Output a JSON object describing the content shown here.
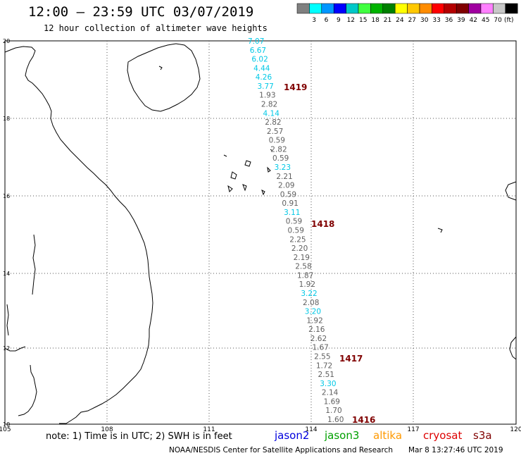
{
  "header": {
    "title": "12:00 – 23:59 UTC 03/07/2019",
    "subtitle": "12 hour collection of altimeter wave heights"
  },
  "legend": {
    "unit": "(ft)",
    "colors": [
      "#808080",
      "#00ffff",
      "#0096ff",
      "#0000ff",
      "#00c8c8",
      "#40ff40",
      "#00b400",
      "#008000",
      "#ffff00",
      "#ffc800",
      "#ff8c00",
      "#ff0000",
      "#b40000",
      "#800000",
      "#a000a0",
      "#ff80ff",
      "#c8c8c8",
      "#000000"
    ],
    "labels": [
      "3",
      "6",
      "9",
      "12",
      "15",
      "18",
      "21",
      "24",
      "27",
      "30",
      "33",
      "36",
      "39",
      "42",
      "45",
      "70"
    ]
  },
  "axes": {
    "lon_labels": [
      "105",
      "108",
      "111",
      "114",
      "117",
      "120"
    ],
    "lat_labels": [
      "20",
      "18",
      "16",
      "14",
      "12",
      "10"
    ]
  },
  "track": {
    "cyan": "#00c8e6",
    "gray": "#606060",
    "points": [
      {
        "v": "7.07",
        "c": "cyan"
      },
      {
        "v": "6.67",
        "c": "cyan"
      },
      {
        "v": "6.02",
        "c": "cyan"
      },
      {
        "v": "4.44",
        "c": "cyan"
      },
      {
        "v": "4.26",
        "c": "cyan"
      },
      {
        "v": "3.77",
        "c": "cyan"
      },
      {
        "v": "1.93",
        "c": "gray"
      },
      {
        "v": "2.82",
        "c": "gray"
      },
      {
        "v": "4.14",
        "c": "cyan"
      },
      {
        "v": "2.82",
        "c": "gray"
      },
      {
        "v": "2.57",
        "c": "gray"
      },
      {
        "v": "0.59",
        "c": "gray"
      },
      {
        "v": "2.82",
        "c": "gray"
      },
      {
        "v": "0.59",
        "c": "gray"
      },
      {
        "v": "3.23",
        "c": "cyan"
      },
      {
        "v": "2.21",
        "c": "gray"
      },
      {
        "v": "2.09",
        "c": "gray"
      },
      {
        "v": "0.59",
        "c": "gray"
      },
      {
        "v": "0.91",
        "c": "gray"
      },
      {
        "v": "3.11",
        "c": "cyan"
      },
      {
        "v": "0.59",
        "c": "gray"
      },
      {
        "v": "0.59",
        "c": "gray"
      },
      {
        "v": "2.25",
        "c": "gray"
      },
      {
        "v": "2.20",
        "c": "gray"
      },
      {
        "v": "2.19",
        "c": "gray"
      },
      {
        "v": "2.58",
        "c": "gray"
      },
      {
        "v": "1.87",
        "c": "gray"
      },
      {
        "v": "1.92",
        "c": "gray"
      },
      {
        "v": "3.22",
        "c": "cyan"
      },
      {
        "v": "2.08",
        "c": "gray"
      },
      {
        "v": "3.20",
        "c": "cyan"
      },
      {
        "v": "1.92",
        "c": "gray"
      },
      {
        "v": "2.16",
        "c": "gray"
      },
      {
        "v": "2.62",
        "c": "gray"
      },
      {
        "v": "1.67",
        "c": "gray"
      },
      {
        "v": "2.55",
        "c": "gray"
      },
      {
        "v": "1.72",
        "c": "gray"
      },
      {
        "v": "2.51",
        "c": "gray"
      },
      {
        "v": "3.30",
        "c": "cyan"
      },
      {
        "v": "2.14",
        "c": "gray"
      },
      {
        "v": "1.69",
        "c": "gray"
      },
      {
        "v": "1.70",
        "c": "gray"
      },
      {
        "v": "1.60",
        "c": "gray"
      }
    ],
    "time_labels": [
      "1419",
      "1418",
      "1417",
      "1416"
    ],
    "time_color": "#800000"
  },
  "footer": {
    "note": "note: 1) Time is in UTC; 2) SWH is in feet",
    "satellites": [
      {
        "name": "jason2",
        "color": "#0000dd"
      },
      {
        "name": "jason3",
        "color": "#00a000"
      },
      {
        "name": "altika",
        "color": "#ff9900"
      },
      {
        "name": "cryosat",
        "color": "#dd0000"
      },
      {
        "name": "s3a",
        "color": "#800000"
      }
    ],
    "credit": "NOAA/NESDIS Center for Satellite Applications and Research",
    "timestamp": "Mar  8 13:27:46 UTC 2019"
  }
}
